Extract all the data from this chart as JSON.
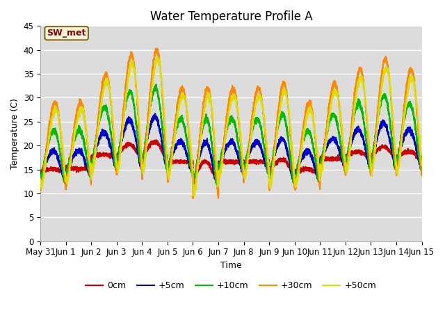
{
  "title": "Water Temperature Profile A",
  "xlabel": "Time",
  "ylabel": "Temperature (C)",
  "ylim": [
    0,
    45
  ],
  "yticks": [
    0,
    5,
    10,
    15,
    20,
    25,
    30,
    35,
    40,
    45
  ],
  "background_color": "#ffffff",
  "plot_bg_color": "#dcdcdc",
  "annotation_text": "SW_met",
  "annotation_color": "#8b0000",
  "annotation_bg": "#f5f5dc",
  "annotation_border": "#8b6914",
  "series_colors": [
    "#cc0000",
    "#0000cc",
    "#00bb00",
    "#ff8800",
    "#dddd00"
  ],
  "series_labels": [
    "0cm",
    "+5cm",
    "+10cm",
    "+30cm",
    "+50cm"
  ],
  "series_lw": [
    1.5,
    1.5,
    1.5,
    1.5,
    1.5
  ],
  "x_tick_labels": [
    "May 31",
    "Jun 1",
    "Jun 2",
    "Jun 3",
    "Jun 4",
    "Jun 5",
    "Jun 6",
    "Jun 7",
    "Jun 8",
    "Jun 9",
    "Jun 10",
    "Jun 11",
    "Jun 12",
    "Jun 13",
    "Jun 14",
    "Jun 15"
  ],
  "n_days": 15,
  "ppd": 288,
  "title_fontsize": 12,
  "label_fontsize": 9,
  "tick_fontsize": 8.5,
  "legend_fontsize": 9
}
